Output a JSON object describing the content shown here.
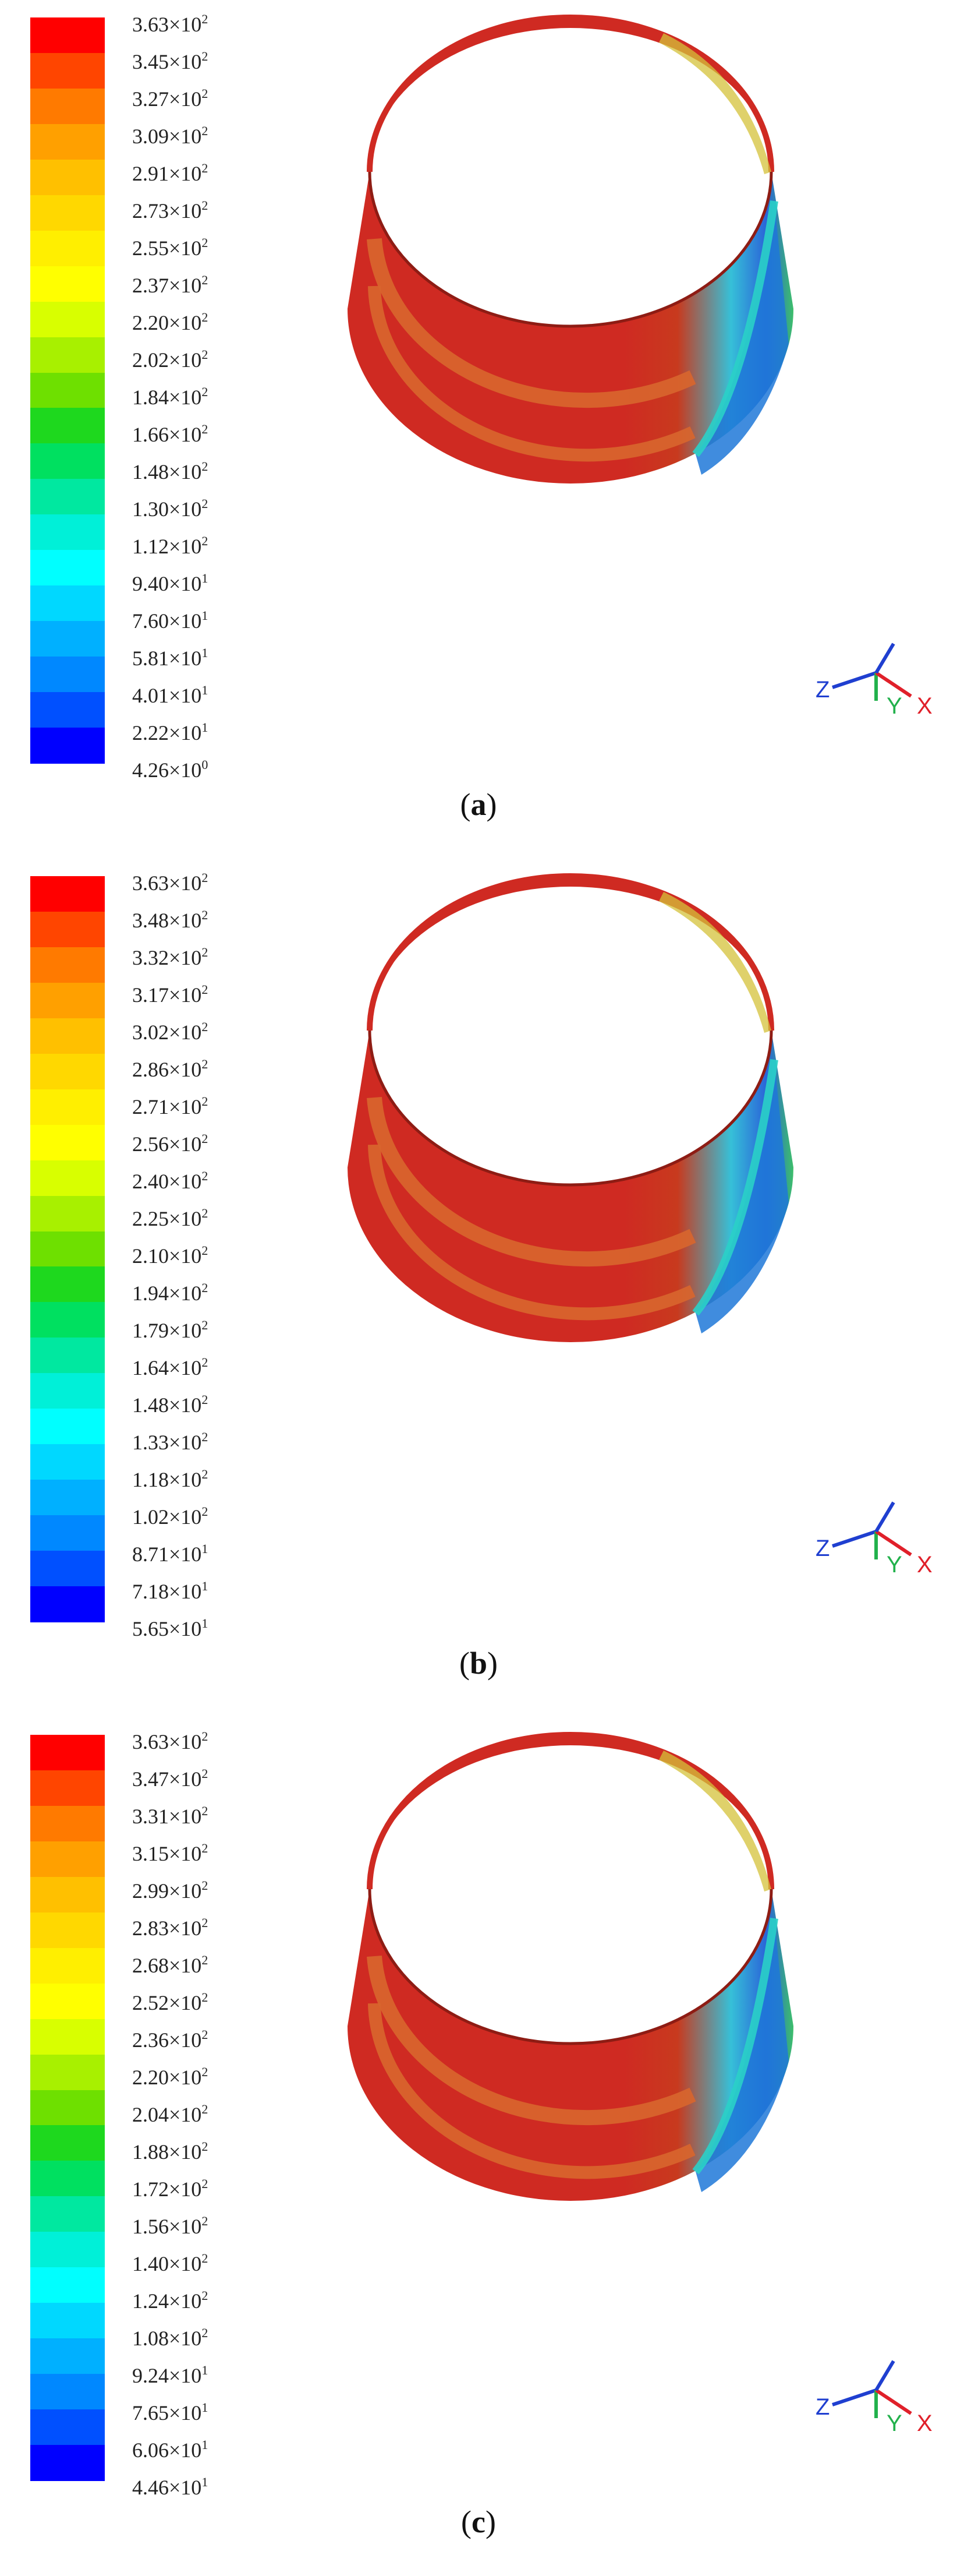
{
  "panels": [
    {
      "caption_open": "(",
      "caption_letter": "a",
      "caption_close": ")",
      "ticks": [
        {
          "m": "3.63",
          "e": "2"
        },
        {
          "m": "3.45",
          "e": "2"
        },
        {
          "m": "3.27",
          "e": "2"
        },
        {
          "m": "3.09",
          "e": "2"
        },
        {
          "m": "2.91",
          "e": "2"
        },
        {
          "m": "2.73",
          "e": "2"
        },
        {
          "m": "2.55",
          "e": "2"
        },
        {
          "m": "2.37",
          "e": "2"
        },
        {
          "m": "2.20",
          "e": "2"
        },
        {
          "m": "2.02",
          "e": "2"
        },
        {
          "m": "1.84",
          "e": "2"
        },
        {
          "m": "1.66",
          "e": "2"
        },
        {
          "m": "1.48",
          "e": "2"
        },
        {
          "m": "1.30",
          "e": "2"
        },
        {
          "m": "1.12",
          "e": "2"
        },
        {
          "m": "9.40",
          "e": "1"
        },
        {
          "m": "7.60",
          "e": "1"
        },
        {
          "m": "5.81",
          "e": "1"
        },
        {
          "m": "4.01",
          "e": "1"
        },
        {
          "m": "2.22",
          "e": "1"
        },
        {
          "m": "4.26",
          "e": "0"
        }
      ]
    },
    {
      "caption_open": "(",
      "caption_letter": "b",
      "caption_close": ")",
      "ticks": [
        {
          "m": "3.63",
          "e": "2"
        },
        {
          "m": "3.48",
          "e": "2"
        },
        {
          "m": "3.32",
          "e": "2"
        },
        {
          "m": "3.17",
          "e": "2"
        },
        {
          "m": "3.02",
          "e": "2"
        },
        {
          "m": "2.86",
          "e": "2"
        },
        {
          "m": "2.71",
          "e": "2"
        },
        {
          "m": "2.56",
          "e": "2"
        },
        {
          "m": "2.40",
          "e": "2"
        },
        {
          "m": "2.25",
          "e": "2"
        },
        {
          "m": "2.10",
          "e": "2"
        },
        {
          "m": "1.94",
          "e": "2"
        },
        {
          "m": "1.79",
          "e": "2"
        },
        {
          "m": "1.64",
          "e": "2"
        },
        {
          "m": "1.48",
          "e": "2"
        },
        {
          "m": "1.33",
          "e": "2"
        },
        {
          "m": "1.18",
          "e": "2"
        },
        {
          "m": "1.02",
          "e": "2"
        },
        {
          "m": "8.71",
          "e": "1"
        },
        {
          "m": "7.18",
          "e": "1"
        },
        {
          "m": "5.65",
          "e": "1"
        }
      ]
    },
    {
      "caption_open": "(",
      "caption_letter": "c",
      "caption_close": ")",
      "ticks": [
        {
          "m": "3.63",
          "e": "2"
        },
        {
          "m": "3.47",
          "e": "2"
        },
        {
          "m": "3.31",
          "e": "2"
        },
        {
          "m": "3.15",
          "e": "2"
        },
        {
          "m": "2.99",
          "e": "2"
        },
        {
          "m": "2.83",
          "e": "2"
        },
        {
          "m": "2.68",
          "e": "2"
        },
        {
          "m": "2.52",
          "e": "2"
        },
        {
          "m": "2.36",
          "e": "2"
        },
        {
          "m": "2.20",
          "e": "2"
        },
        {
          "m": "2.04",
          "e": "2"
        },
        {
          "m": "1.88",
          "e": "2"
        },
        {
          "m": "1.72",
          "e": "2"
        },
        {
          "m": "1.56",
          "e": "2"
        },
        {
          "m": "1.40",
          "e": "2"
        },
        {
          "m": "1.24",
          "e": "2"
        },
        {
          "m": "1.08",
          "e": "2"
        },
        {
          "m": "9.24",
          "e": "1"
        },
        {
          "m": "7.65",
          "e": "1"
        },
        {
          "m": "6.06",
          "e": "1"
        },
        {
          "m": "4.46",
          "e": "1"
        }
      ]
    }
  ],
  "times_sign": "×10",
  "axis_labels": {
    "z": "Z",
    "y": "Y",
    "x": "X"
  },
  "colors": {
    "ring_red": "#cf2a22",
    "ring_orange": "#d8662e",
    "ring_dark": "#8e1c14",
    "axis_z": "#1f3fd0",
    "axis_y": "#22b14c",
    "axis_x": "#e0202a",
    "legend_scale": [
      "#ff0000",
      "#ff4500",
      "#ff7a00",
      "#ffa000",
      "#ffc000",
      "#ffd800",
      "#ffef00",
      "#ffff00",
      "#d8ff00",
      "#a8f000",
      "#6ee000",
      "#1ed81e",
      "#00e060",
      "#00e8a0",
      "#00f0d8",
      "#00ffff",
      "#00d8ff",
      "#00b0ff",
      "#0088ff",
      "#0050ff",
      "#0000ff"
    ]
  }
}
